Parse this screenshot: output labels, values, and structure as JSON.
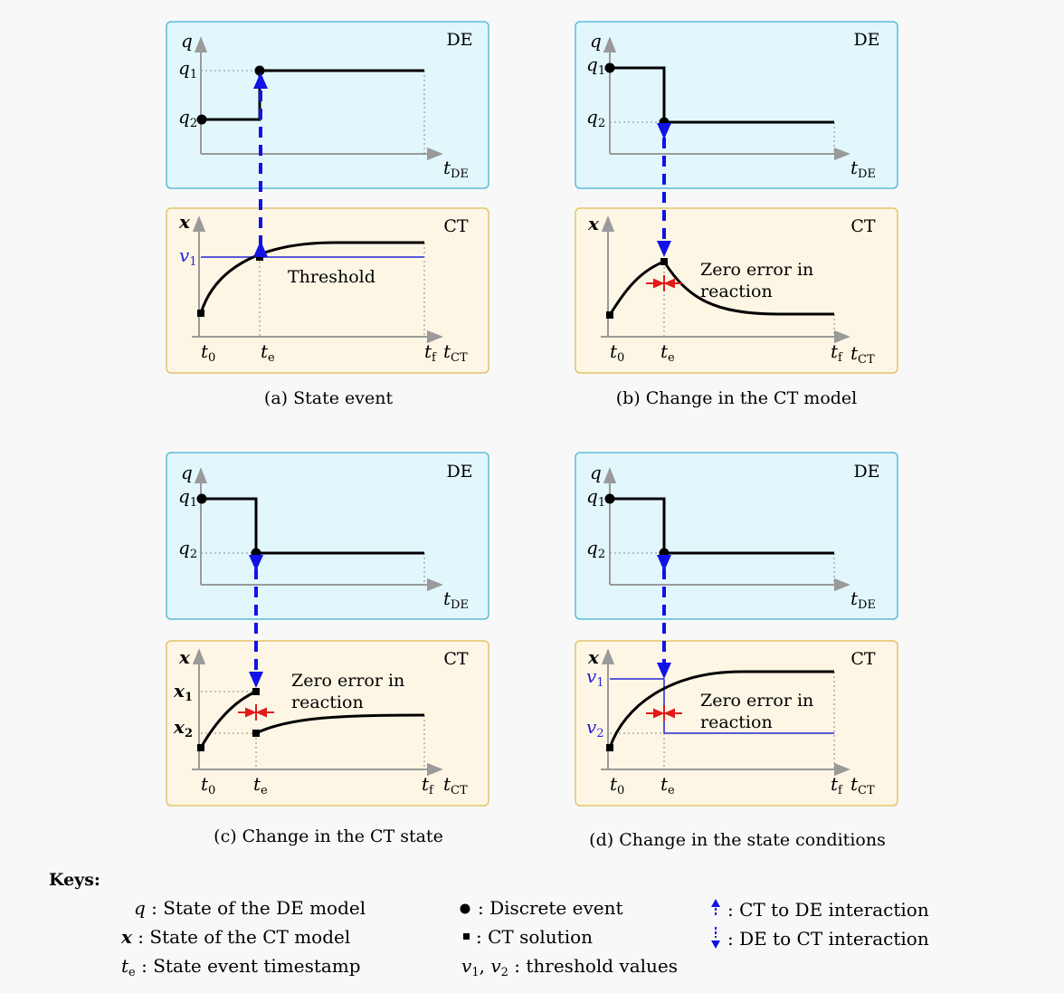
{
  "panels": {
    "a": {
      "caption": "(a) State event",
      "de_tag": "DE",
      "ct_tag": "CT",
      "de_y_axis": "q",
      "de_x_axis": "t",
      "de_x_axis_sub": "DE",
      "de_level_high": "q",
      "de_level_high_sub": "1",
      "de_level_low": "q",
      "de_level_low_sub": "2",
      "ct_y_axis": "x",
      "ct_x_axis": "t",
      "ct_x_axis_sub": "CT",
      "threshold_label": "v",
      "threshold_label_sub": "1",
      "annotation": "Threshold",
      "tick_start": "t",
      "tick_start_sub": "0",
      "tick_event": "t",
      "tick_event_sub": "e",
      "tick_final": "t",
      "tick_final_sub": "f"
    },
    "b": {
      "caption": "(b) Change in the CT model",
      "de_tag": "DE",
      "ct_tag": "CT",
      "de_y_axis": "q",
      "de_x_axis": "t",
      "de_x_axis_sub": "DE",
      "de_level_high": "q",
      "de_level_high_sub": "1",
      "de_level_low": "q",
      "de_level_low_sub": "2",
      "ct_y_axis": "x",
      "ct_x_axis": "t",
      "ct_x_axis_sub": "CT",
      "annotation_line1": "Zero error in",
      "annotation_line2": "reaction",
      "tick_start": "t",
      "tick_start_sub": "0",
      "tick_event": "t",
      "tick_event_sub": "e",
      "tick_final": "t",
      "tick_final_sub": "f"
    },
    "c": {
      "caption": "(c) Change in the CT state",
      "de_tag": "DE",
      "ct_tag": "CT",
      "de_y_axis": "q",
      "de_x_axis": "t",
      "de_x_axis_sub": "DE",
      "de_level_high": "q",
      "de_level_high_sub": "1",
      "de_level_low": "q",
      "de_level_low_sub": "2",
      "ct_y_axis": "x",
      "ct_x_axis": "t",
      "ct_x_axis_sub": "CT",
      "state_high": "x",
      "state_high_sub": "1",
      "state_low": "x",
      "state_low_sub": "2",
      "annotation_line1": "Zero error in",
      "annotation_line2": "reaction",
      "tick_start": "t",
      "tick_start_sub": "0",
      "tick_event": "t",
      "tick_event_sub": "e",
      "tick_final": "t",
      "tick_final_sub": "f"
    },
    "d": {
      "caption": "(d) Change in the state conditions",
      "de_tag": "DE",
      "ct_tag": "CT",
      "de_y_axis": "q",
      "de_x_axis": "t",
      "de_x_axis_sub": "DE",
      "de_level_high": "q",
      "de_level_high_sub": "1",
      "de_level_low": "q",
      "de_level_low_sub": "2",
      "ct_y_axis": "x",
      "ct_x_axis": "t",
      "ct_x_axis_sub": "CT",
      "threshold_high": "v",
      "threshold_high_sub": "1",
      "threshold_low": "v",
      "threshold_low_sub": "2",
      "annotation_line1": "Zero error in",
      "annotation_line2": "reaction",
      "tick_start": "t",
      "tick_start_sub": "0",
      "tick_event": "t",
      "tick_event_sub": "e",
      "tick_final": "t",
      "tick_final_sub": "f"
    }
  },
  "keys": {
    "title": "Keys:",
    "q_symbol": "q",
    "q_text": " : State of the DE model",
    "x_symbol": "x",
    "x_text": " : State of the CT model",
    "te_symbol": "t",
    "te_sub": "e",
    "te_text": " : State event timestamp",
    "discrete_event": ": Discrete event",
    "ct_solution": ": CT solution",
    "v_symbol_1": "v",
    "v_sub_1": "1",
    "v_sep": ", ",
    "v_symbol_2": "v",
    "v_sub_2": "2",
    "v_text": " : threshold values",
    "ct_to_de": ": CT to DE interaction",
    "de_to_ct": ": DE to CT interaction"
  },
  "colors": {
    "de_fill": "#e2f7fc",
    "de_border": "#5bbcd8",
    "ct_fill": "#fef6e5",
    "ct_border": "#e3c46a",
    "interaction": "#1212e6",
    "threshold": "#2323d6",
    "error_marker": "#e21a1a",
    "axis": "#9a9a9a",
    "guide": "#888888"
  }
}
